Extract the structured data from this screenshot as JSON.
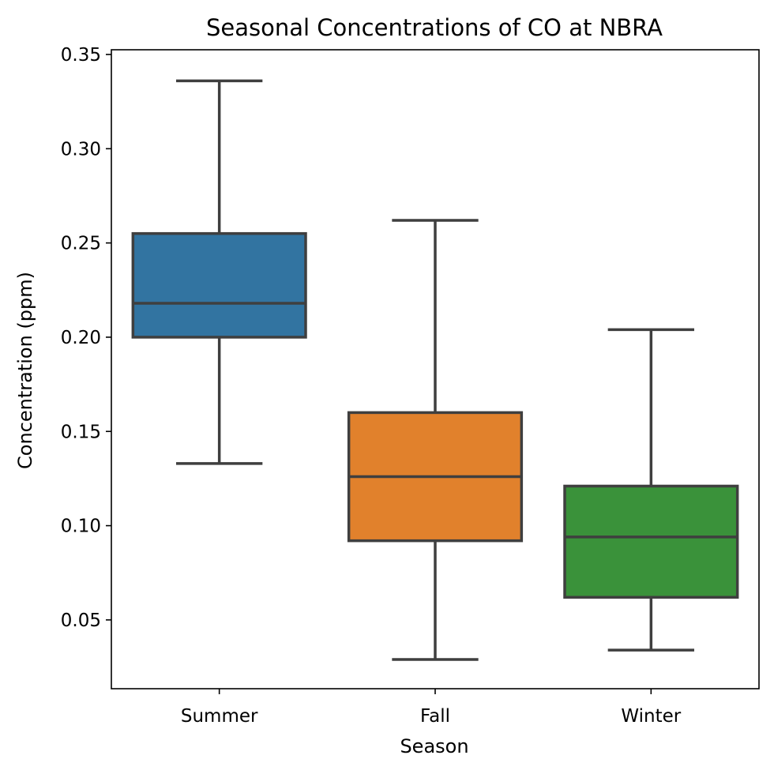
{
  "chart_data": {
    "type": "box",
    "title": "Seasonal Concentrations of CO at NBRA",
    "xlabel": "Season",
    "ylabel": "Concentration (ppm)",
    "ylim": [
      0.0135,
      0.3525
    ],
    "yticks": [
      0.05,
      0.1,
      0.15,
      0.2,
      0.25,
      0.3,
      0.35
    ],
    "ytick_labels": [
      "0.05",
      "0.10",
      "0.15",
      "0.20",
      "0.25",
      "0.30",
      "0.35"
    ],
    "categories": [
      "Summer",
      "Fall",
      "Winter"
    ],
    "grid": false,
    "boxes": [
      {
        "category": "Summer",
        "whisker_low": 0.133,
        "q1": 0.2,
        "median": 0.218,
        "q3": 0.255,
        "whisker_high": 0.336,
        "color": "#3274a1"
      },
      {
        "category": "Fall",
        "whisker_low": 0.029,
        "q1": 0.092,
        "median": 0.126,
        "q3": 0.16,
        "whisker_high": 0.262,
        "color": "#e1812c"
      },
      {
        "category": "Winter",
        "whisker_low": 0.034,
        "q1": 0.062,
        "median": 0.094,
        "q3": 0.121,
        "whisker_high": 0.204,
        "color": "#3a923a"
      }
    ],
    "line_color": "#3f3f3f"
  }
}
